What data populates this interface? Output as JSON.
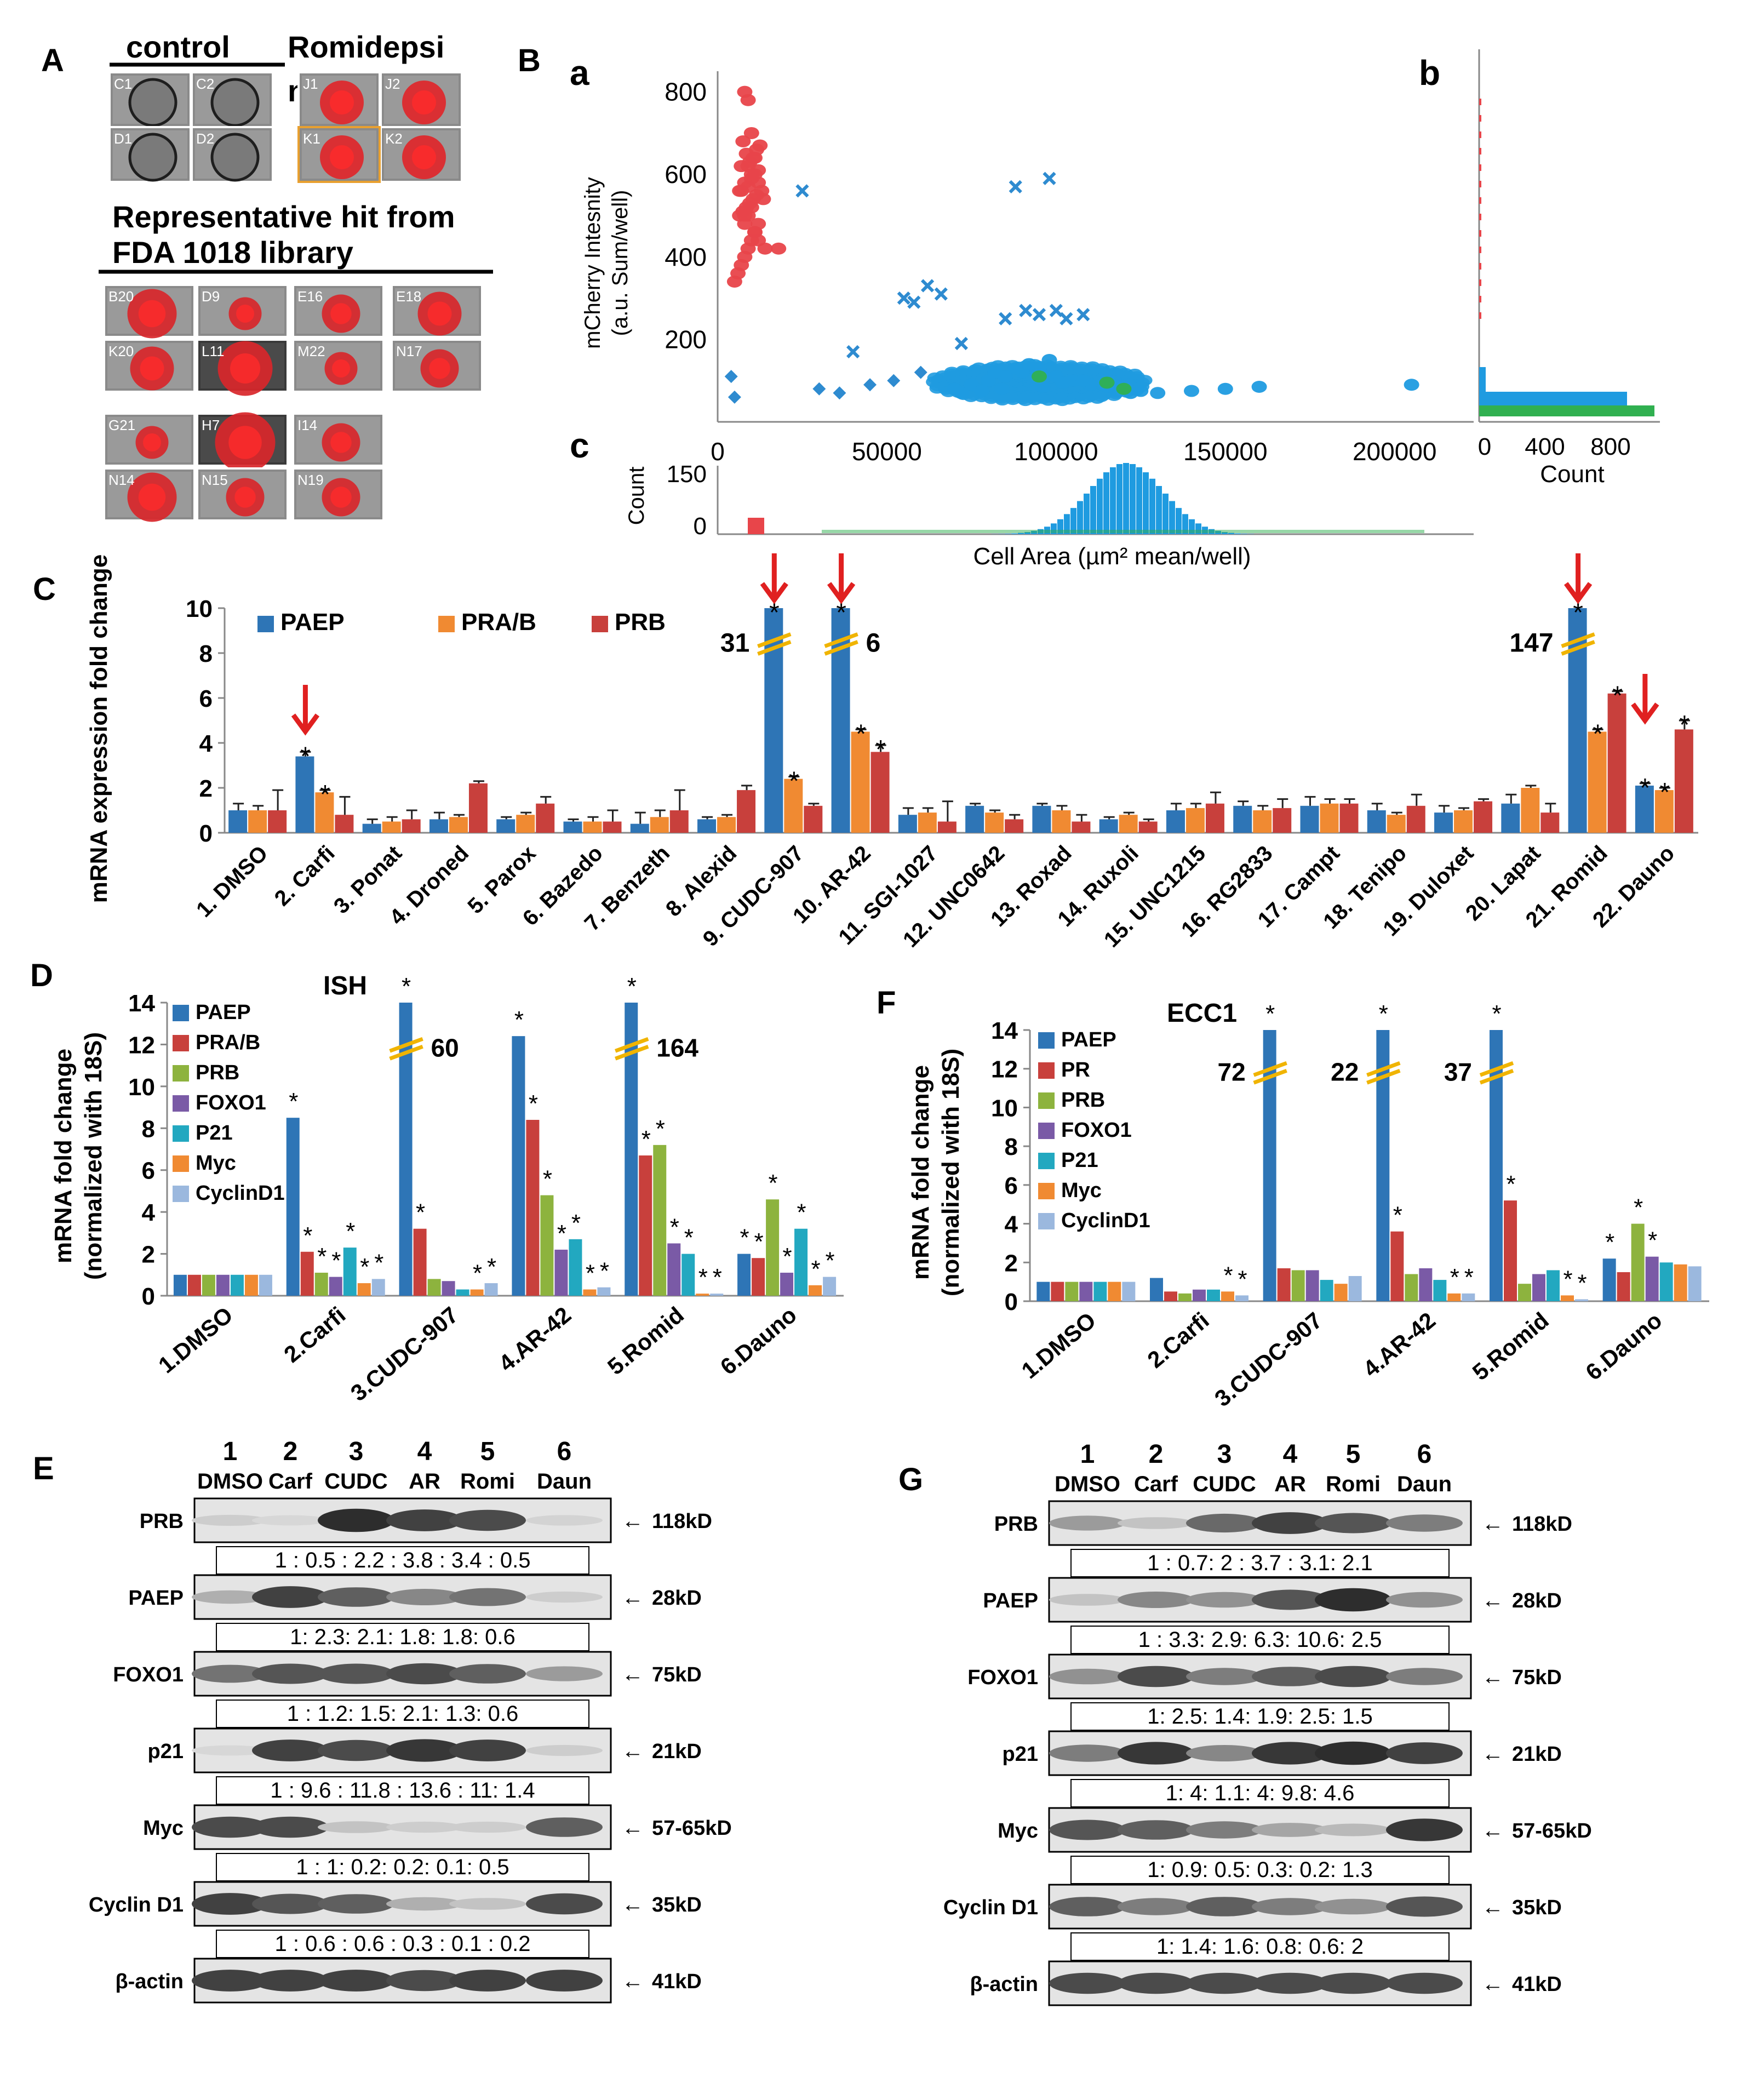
{
  "panels": {
    "A": "A",
    "B": "B",
    "C": "C",
    "D": "D",
    "E": "E",
    "F": "F",
    "G": "G",
    "Ba": "a",
    "Bb": "b",
    "Bc": "c"
  },
  "panelA": {
    "control_label": "control",
    "treat_label_1": "Romidepsi",
    "treat_label_2": "n",
    "hit_title_1": "Representative hit from",
    "hit_title_2": "FDA 1018 library",
    "control_wells": [
      "C1",
      "C2",
      "D1",
      "D2"
    ],
    "treat_wells": [
      "J1",
      "J2",
      "K1",
      "K2"
    ],
    "hit_wells": [
      "B20",
      "D9",
      "E16",
      "E18",
      "K20",
      "L11",
      "M22",
      "N17",
      "G21",
      "H7",
      "I14",
      "N14",
      "N15",
      "N19"
    ]
  },
  "panelB": {
    "scatter_ylabel_1": "mCherry Intesnity",
    "scatter_ylabel_2": "(a.u. Sum/well)",
    "count_label_right": "Count",
    "count_label_bottom": "Count",
    "xlabel": "Cell Area (µm² mean/well)"
  },
  "chart_data": [
    {
      "id": "B-scatter",
      "type": "scatter",
      "x_ticks": [
        "0",
        "50000",
        "100000",
        "150000",
        "200000"
      ],
      "y_ticks": [
        "200",
        "400",
        "600",
        "800"
      ],
      "xlim": [
        0,
        220000
      ],
      "ylim": [
        0,
        850
      ],
      "series": [
        {
          "name": "red hits",
          "color": "#e8454a",
          "x": [
            5000,
            6000,
            7000,
            8000,
            9000,
            10000,
            11000,
            12000,
            6500,
            7500,
            8500,
            9500,
            10500,
            11500,
            13000,
            9000,
            8000,
            10000,
            11000,
            12000,
            7000,
            9500,
            10500,
            8500,
            11500,
            12500,
            7500,
            6500,
            13500,
            10000,
            9000,
            8000,
            11000,
            12000,
            14000,
            10000,
            9000,
            18000,
            8000,
            7000,
            12000,
            11000,
            10000,
            9000,
            8000
          ],
          "y": [
            340,
            360,
            380,
            400,
            420,
            440,
            460,
            480,
            500,
            510,
            520,
            530,
            540,
            550,
            560,
            570,
            580,
            590,
            600,
            610,
            620,
            630,
            640,
            650,
            660,
            670,
            680,
            560,
            540,
            520,
            500,
            480,
            460,
            440,
            420,
            600,
            620,
            420,
            500,
            560,
            580,
            640,
            700,
            780,
            800
          ]
        },
        {
          "name": "blue cross",
          "color": "#2e8bd0",
          "marker": "x",
          "x": [
            25000,
            55000,
            58000,
            62000,
            66000,
            40000,
            72000,
            85000,
            91000,
            95000,
            100000,
            103000,
            108000,
            88000,
            98000
          ],
          "y": [
            560,
            300,
            290,
            330,
            310,
            170,
            190,
            250,
            270,
            260,
            270,
            250,
            260,
            570,
            590
          ]
        },
        {
          "name": "blue diamond",
          "color": "#2e8bd0",
          "marker": "diamond",
          "x": [
            4000,
            5000,
            30000,
            36000,
            45000,
            52000,
            60000
          ],
          "y": [
            110,
            60,
            80,
            70,
            90,
            100,
            120
          ]
        },
        {
          "name": "blue dots",
          "color": "#1f9be0",
          "marker": "circle",
          "x": [
            70000,
            75000,
            80000,
            85000,
            90000,
            95000,
            100000,
            105000,
            110000,
            115000,
            120000,
            125000,
            130000,
            140000,
            150000,
            160000,
            205000,
            72000,
            78000,
            84000,
            96000,
            102000,
            108000,
            114000,
            118000,
            122000,
            88000,
            92000,
            82000,
            98000
          ],
          "y": [
            80,
            90,
            100,
            110,
            120,
            130,
            110,
            100,
            90,
            85,
            80,
            75,
            70,
            75,
            80,
            85,
            90,
            70,
            75,
            80,
            85,
            95,
            100,
            90,
            75,
            70,
            130,
            140,
            120,
            150
          ]
        },
        {
          "name": "green",
          "color": "#30b050",
          "x": [
            95000,
            115000,
            120000
          ],
          "y": [
            110,
            95,
            80
          ]
        }
      ]
    },
    {
      "id": "C",
      "type": "bar",
      "ylabel": "mRNA expression fold change",
      "ylim": [
        0,
        10
      ],
      "y_ticks": [
        "0",
        "2",
        "4",
        "6",
        "8",
        "10"
      ],
      "legend": [
        "PAEP",
        "PRA/B",
        "PRB"
      ],
      "colors": [
        "#2e75b6",
        "#f08a32",
        "#c8403c"
      ],
      "categories": [
        "1. DMSO",
        "2. Carfi",
        "3. Ponat",
        "4. Droned",
        "5. Parox",
        "6. Bazedo",
        "7. Benzeth",
        "8. Alexid",
        "9. CUDC-907",
        "10. AR-42",
        "11. SGI-1027",
        "12. UNC0642",
        "13. Roxad",
        "14. Ruxoli",
        "15. UNC1215",
        "16. RG2833",
        "17. Campt",
        "18. Tenipo",
        "19. Duloxet",
        "20. Lapat",
        "21. Romid",
        "22. Dauno"
      ],
      "series": [
        {
          "name": "PAEP",
          "values": [
            1.0,
            3.4,
            0.4,
            0.6,
            0.6,
            0.5,
            0.4,
            0.6,
            10,
            10,
            0.8,
            1.2,
            1.2,
            0.6,
            1.0,
            1.2,
            1.2,
            1.0,
            0.9,
            1.3,
            10,
            2.1
          ]
        },
        {
          "name": "PRA/B",
          "values": [
            1.0,
            1.8,
            0.5,
            0.7,
            0.8,
            0.5,
            0.7,
            0.7,
            2.4,
            4.5,
            0.9,
            0.9,
            1.0,
            0.8,
            1.1,
            1.0,
            1.3,
            0.8,
            1.0,
            2.0,
            4.5,
            1.9
          ]
        },
        {
          "name": "PRB",
          "values": [
            1.0,
            0.8,
            0.6,
            2.2,
            1.3,
            0.5,
            1.0,
            1.9,
            1.2,
            3.6,
            0.5,
            0.6,
            0.5,
            0.5,
            1.3,
            1.1,
            1.3,
            1.2,
            1.4,
            0.9,
            6.2,
            4.6
          ]
        }
      ],
      "errors": [
        [
          0.3,
          0.2,
          0.2,
          0.3,
          0.1,
          0.1,
          0.5,
          0.1,
          0,
          0,
          0.3,
          0.1,
          0.1,
          0.1,
          0.3,
          0.2,
          0.4,
          0.3,
          0.3,
          0.4,
          0,
          0.1
        ],
        [
          0.2,
          0.1,
          0.2,
          0.1,
          0.1,
          0.2,
          0.3,
          0.1,
          0.1,
          0.1,
          0.2,
          0.1,
          0.2,
          0.1,
          0.2,
          0.2,
          0.2,
          0.1,
          0.1,
          0.1,
          0.1,
          0.1
        ],
        [
          0.9,
          0.8,
          0.4,
          0.1,
          0.3,
          0.5,
          0.9,
          0.2,
          0.1,
          0.3,
          0.9,
          0.2,
          0.3,
          0.1,
          0.5,
          0.4,
          0.2,
          0.5,
          0.1,
          0.4,
          0.1,
          0.4
        ]
      ],
      "stars": [
        [
          1,
          0
        ],
        [
          1,
          1
        ],
        [
          8,
          0
        ],
        [
          8,
          1
        ],
        [
          9,
          0
        ],
        [
          9,
          1
        ],
        [
          9,
          2
        ],
        [
          20,
          0
        ],
        [
          20,
          1
        ],
        [
          20,
          2
        ],
        [
          21,
          0
        ],
        [
          21,
          1
        ],
        [
          21,
          2
        ]
      ],
      "break_labels": [
        {
          "cat": 8,
          "text": "31"
        },
        {
          "cat": 9,
          "text": "6"
        },
        {
          "cat": 20,
          "text": "147"
        }
      ],
      "arrow_cats": [
        1,
        8,
        9,
        20,
        21
      ]
    },
    {
      "id": "D",
      "type": "bar",
      "title": "ISH",
      "ylabel_1": "mRNA  fold change",
      "ylabel_2": "(normalized with 18S)",
      "ylim": [
        0,
        14
      ],
      "y_ticks": [
        "0",
        "2",
        "4",
        "6",
        "8",
        "10",
        "12",
        "14"
      ],
      "legend": [
        "PAEP",
        "PRA/B",
        "PRB",
        "FOXO1",
        "P21",
        "Myc",
        "CyclinD1"
      ],
      "colors": [
        "#2e75b6",
        "#c8403c",
        "#8db33e",
        "#7a5aa6",
        "#22a8c0",
        "#f08a32",
        "#9bb8de"
      ],
      "categories": [
        "1.DMSO",
        "2.Carfi",
        "3.CUDC-907",
        "4.AR-42",
        "5.Romid",
        "6.Dauno"
      ],
      "series": [
        {
          "name": "PAEP",
          "values": [
            1.0,
            8.5,
            14,
            12.4,
            14,
            2.0
          ]
        },
        {
          "name": "PRA/B",
          "values": [
            1.0,
            2.1,
            3.2,
            8.4,
            6.7,
            1.8
          ]
        },
        {
          "name": "PRB",
          "values": [
            1.0,
            1.1,
            0.8,
            4.8,
            7.2,
            4.6
          ]
        },
        {
          "name": "FOXO1",
          "values": [
            1.0,
            0.9,
            0.7,
            2.2,
            2.5,
            1.1
          ]
        },
        {
          "name": "P21",
          "values": [
            1.0,
            2.3,
            0.3,
            2.7,
            2.0,
            3.2
          ]
        },
        {
          "name": "Myc",
          "values": [
            1.0,
            0.6,
            0.3,
            0.3,
            0.1,
            0.5
          ]
        },
        {
          "name": "CyclinD1",
          "values": [
            1.0,
            0.8,
            0.6,
            0.4,
            0.1,
            0.9
          ]
        }
      ],
      "break_labels": [
        {
          "cat": 2,
          "text": "60"
        },
        {
          "cat": 4,
          "text": "164"
        }
      ]
    },
    {
      "id": "F",
      "type": "bar",
      "title": "ECC1",
      "ylabel_1": "mRNA  fold change",
      "ylabel_2": "(normalized with 18S)",
      "ylim": [
        0,
        14
      ],
      "y_ticks": [
        "0",
        "2",
        "4",
        "6",
        "8",
        "10",
        "12",
        "14"
      ],
      "legend": [
        "PAEP",
        "PR",
        "PRB",
        "FOXO1",
        "P21",
        "Myc",
        "CyclinD1"
      ],
      "colors": [
        "#2e75b6",
        "#c8403c",
        "#8db33e",
        "#7a5aa6",
        "#22a8c0",
        "#f08a32",
        "#9bb8de"
      ],
      "categories": [
        "1.DMSO",
        "2.Carfi",
        "3.CUDC-907",
        "4.AR-42",
        "5.Romid",
        "6.Dauno"
      ],
      "series": [
        {
          "name": "PAEP",
          "values": [
            1.0,
            1.2,
            14,
            14,
            14,
            2.2
          ]
        },
        {
          "name": "PR",
          "values": [
            1.0,
            0.5,
            1.7,
            3.6,
            5.2,
            1.5
          ]
        },
        {
          "name": "PRB",
          "values": [
            1.0,
            0.4,
            1.6,
            1.4,
            0.9,
            4.0
          ]
        },
        {
          "name": "FOXO1",
          "values": [
            1.0,
            0.6,
            1.6,
            1.7,
            1.4,
            2.3
          ]
        },
        {
          "name": "P21",
          "values": [
            1.0,
            0.6,
            1.1,
            1.1,
            1.6,
            2.0
          ]
        },
        {
          "name": "Myc",
          "values": [
            1.0,
            0.5,
            0.9,
            0.4,
            0.3,
            1.9
          ]
        },
        {
          "name": "CyclinD1",
          "values": [
            1.0,
            0.3,
            1.3,
            0.4,
            0.1,
            1.8
          ]
        }
      ],
      "break_labels": [
        {
          "cat": 2,
          "text": "72"
        },
        {
          "cat": 3,
          "text": "22"
        },
        {
          "cat": 4,
          "text": "37"
        }
      ]
    }
  ],
  "blotE": {
    "lane_numbers": [
      "1",
      "2",
      "3",
      "4",
      "5",
      "6"
    ],
    "lane_names": [
      "DMSO",
      "Carf",
      "CUDC",
      "AR",
      "Romi",
      "Daun"
    ],
    "rows": [
      {
        "label": "PRB",
        "kd": "118kD",
        "ratio": "1 :  0.5 :  2.2  : 3.8 : 3.4 :  0.5",
        "intensity": [
          0.15,
          0.1,
          0.95,
          0.85,
          0.8,
          0.12
        ]
      },
      {
        "label": "PAEP",
        "kd": "28kD",
        "ratio": "1:    2.3:  2.1:   1.8:   1.8:   0.6",
        "intensity": [
          0.3,
          0.85,
          0.7,
          0.5,
          0.6,
          0.15
        ]
      },
      {
        "label": "FOXO1",
        "kd": "75kD",
        "ratio": "1  :  1.2:   1.5:   2.1:   1.3:   0.6",
        "intensity": [
          0.6,
          0.75,
          0.75,
          0.8,
          0.7,
          0.4
        ]
      },
      {
        "label": "p21",
        "kd": "21kD",
        "ratio": "1  : 9.6  :  11.8 : 13.6 :  11:   1.4",
        "intensity": [
          0.1,
          0.85,
          0.8,
          0.9,
          0.85,
          0.15
        ]
      },
      {
        "label": "Myc",
        "kd": "57-65kD",
        "ratio": "1  :   1:    0.2:   0.2:   0.1:   0.5",
        "intensity": [
          0.8,
          0.8,
          0.2,
          0.15,
          0.15,
          0.7
        ]
      },
      {
        "label": "Cyclin D1",
        "kd": "35kD",
        "ratio": "1 :   0.6 :   0.6 :   0.3 :  0.1 : 0.2",
        "intensity": [
          0.85,
          0.75,
          0.7,
          0.3,
          0.2,
          0.8
        ]
      },
      {
        "label": "β-actin",
        "kd": "41kD",
        "ratio": "",
        "intensity": [
          0.85,
          0.85,
          0.85,
          0.8,
          0.85,
          0.85
        ]
      }
    ]
  },
  "blotG": {
    "lane_numbers": [
      "1",
      "2",
      "3",
      "4",
      "5",
      "6"
    ],
    "lane_names": [
      "DMSO",
      "Carf",
      "CUDC",
      "AR",
      "Romi",
      "Daun"
    ],
    "rows": [
      {
        "label": "PRB",
        "kd": "118kD",
        "ratio": "1  :  0.7:    2   :  3.7 :  3.1:  2.1",
        "intensity": [
          0.4,
          0.2,
          0.65,
          0.85,
          0.75,
          0.55
        ]
      },
      {
        "label": "PAEP",
        "kd": "28kD",
        "ratio": "1  : 3.3:  2.9:   6.3:  10.6:   2.5",
        "intensity": [
          0.2,
          0.5,
          0.45,
          0.75,
          0.95,
          0.45
        ]
      },
      {
        "label": "FOXO1",
        "kd": "75kD",
        "ratio": "1:    2.5:   1.4:   1.9:   2.5:    1.5",
        "intensity": [
          0.45,
          0.8,
          0.55,
          0.7,
          0.8,
          0.55
        ]
      },
      {
        "label": "p21",
        "kd": "21kD",
        "ratio": "1:       4:     1.1:    4:     9.8:     4.6",
        "intensity": [
          0.55,
          0.9,
          0.5,
          0.9,
          0.95,
          0.85
        ]
      },
      {
        "label": "Myc",
        "kd": "57-65kD",
        "ratio": "1:       0.9:   0.5:   0.3:   0.2:    1.3",
        "intensity": [
          0.75,
          0.7,
          0.55,
          0.35,
          0.25,
          0.9
        ]
      },
      {
        "label": "Cyclin D1",
        "kd": "35kD",
        "ratio": "1:    1.4:  1.6:   0.8:  0.6:      2",
        "intensity": [
          0.7,
          0.55,
          0.7,
          0.55,
          0.45,
          0.75
        ]
      },
      {
        "label": "β-actin",
        "kd": "41kD",
        "ratio": "",
        "intensity": [
          0.8,
          0.8,
          0.8,
          0.8,
          0.8,
          0.8
        ]
      }
    ]
  }
}
